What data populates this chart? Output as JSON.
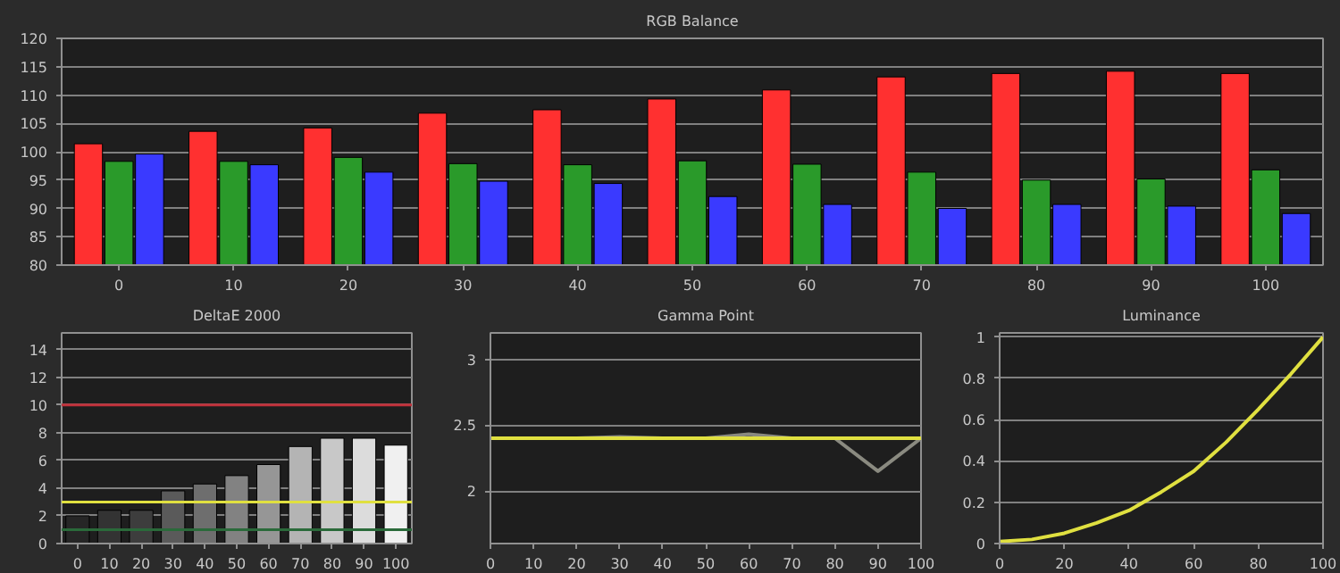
{
  "chart_data": [
    {
      "type": "bar",
      "title": "RGB Balance",
      "categories": [
        "0",
        "10",
        "20",
        "30",
        "40",
        "50",
        "60",
        "70",
        "80",
        "90",
        "100"
      ],
      "ylim": [
        80,
        120
      ],
      "yticks": [
        80,
        85,
        90,
        95,
        100,
        105,
        110,
        115,
        120
      ],
      "grid": "y",
      "series": [
        {
          "color": "#ff3030",
          "values": [
            101.4,
            103.6,
            104.2,
            106.8,
            107.4,
            109.3,
            110.9,
            113.2,
            113.8,
            114.2,
            113.8
          ]
        },
        {
          "color": "#2a9a2a",
          "values": [
            98.3,
            98.3,
            99.0,
            97.9,
            97.7,
            98.4,
            97.8,
            96.4,
            95.0,
            95.2,
            96.8
          ]
        },
        {
          "color": "#3a3aff",
          "values": [
            99.6,
            97.7,
            96.4,
            94.8,
            94.4,
            92.1,
            90.7,
            90.0,
            90.7,
            90.4,
            89.1
          ]
        }
      ]
    },
    {
      "type": "bar",
      "title": "DeltaE 2000",
      "categories": [
        "0",
        "10",
        "20",
        "30",
        "40",
        "50",
        "60",
        "70",
        "80",
        "90",
        "100"
      ],
      "ylim": [
        0,
        15.2
      ],
      "yticks": [
        0,
        2,
        4,
        6,
        8,
        10,
        12,
        14
      ],
      "grid": "y",
      "values": [
        2.0,
        2.4,
        2.4,
        3.8,
        4.3,
        4.9,
        5.7,
        7.0,
        7.6,
        7.6,
        7.1
      ],
      "colors": [
        "#262626",
        "#333333",
        "#3d3d3d",
        "#5a5a5a",
        "#6e6e6e",
        "#828282",
        "#969696",
        "#b4b4b4",
        "#c8c8c8",
        "#dcdcdc",
        "#f0f0f0"
      ],
      "ref_lines": [
        {
          "axis": "y",
          "value": 10,
          "color": "#c0303a"
        },
        {
          "axis": "y",
          "value": 3,
          "color": "#e0e040"
        },
        {
          "axis": "y",
          "value": 1,
          "color": "#2a6a3a"
        }
      ]
    },
    {
      "type": "line",
      "title": "Gamma Point",
      "x": [
        0,
        10,
        20,
        30,
        40,
        50,
        60,
        70,
        80,
        90,
        100
      ],
      "xlim": [
        0,
        100
      ],
      "xticks": [
        0,
        10,
        20,
        30,
        40,
        50,
        60,
        70,
        80,
        90,
        100
      ],
      "ylim": [
        1.6,
        3.2
      ],
      "yticks": [
        2,
        2.5,
        3
      ],
      "grid": "y",
      "series": [
        {
          "color": "#8a8a80",
          "values": [
            2.4,
            2.4,
            2.4,
            2.41,
            2.4,
            2.4,
            2.43,
            2.4,
            2.4,
            2.15,
            2.4
          ]
        },
        {
          "color": "#e0e040",
          "values": [
            2.4,
            2.4,
            2.4,
            2.4,
            2.4,
            2.4,
            2.4,
            2.4,
            2.4,
            2.4,
            2.4
          ]
        }
      ]
    },
    {
      "type": "line",
      "title": "Luminance",
      "x": [
        0,
        10,
        20,
        30,
        40,
        50,
        60,
        70,
        80,
        90,
        100
      ],
      "xlim": [
        0,
        100
      ],
      "xticks": [
        0,
        20,
        40,
        60,
        80,
        100
      ],
      "ylim": [
        0,
        1.02
      ],
      "yticks": [
        0,
        0.2,
        0.4,
        0.6,
        0.8,
        1
      ],
      "grid": "y",
      "series": [
        {
          "color": "#e0e040",
          "values": [
            0.01,
            0.02,
            0.05,
            0.1,
            0.16,
            0.25,
            0.35,
            0.49,
            0.65,
            0.82,
            1.0
          ]
        }
      ]
    }
  ]
}
